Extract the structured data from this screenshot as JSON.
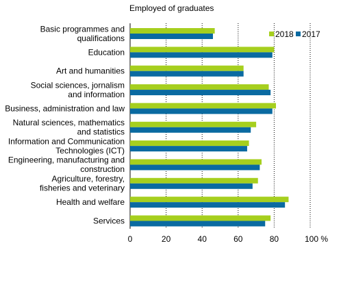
{
  "chart_data": {
    "type": "bar",
    "orientation": "horizontal",
    "title": "Employed of graduates",
    "categories": [
      [
        "Basic programmes and",
        "qualifications"
      ],
      [
        "Education"
      ],
      [
        "Art and humanities"
      ],
      [
        "Social sciences, jornalism",
        "and information"
      ],
      [
        "Business, administration and law"
      ],
      [
        "Natural sciences, mathematics",
        "and statistics"
      ],
      [
        "Information and Communication",
        "Technologies (ICT)"
      ],
      [
        "Engineering, manufacturing and",
        "construction"
      ],
      [
        "Agriculture, forestry,",
        "fisheries and veterinary"
      ],
      [
        "Health and welfare"
      ],
      [
        "Services"
      ]
    ],
    "series": [
      {
        "name": "2018",
        "color": "#a6cf1e",
        "values": [
          47,
          80,
          63,
          77,
          81,
          70,
          66,
          73,
          71,
          88,
          78
        ]
      },
      {
        "name": "2017",
        "color": "#0a6aa1",
        "values": [
          46,
          79,
          63,
          78,
          79,
          67,
          65,
          72,
          68,
          86,
          75
        ]
      }
    ],
    "x_ticks": [
      "0",
      "20",
      "40",
      "60",
      "80",
      "100 %"
    ],
    "xlim": [
      0,
      100
    ],
    "grid": true,
    "legend_position": "top-right"
  }
}
